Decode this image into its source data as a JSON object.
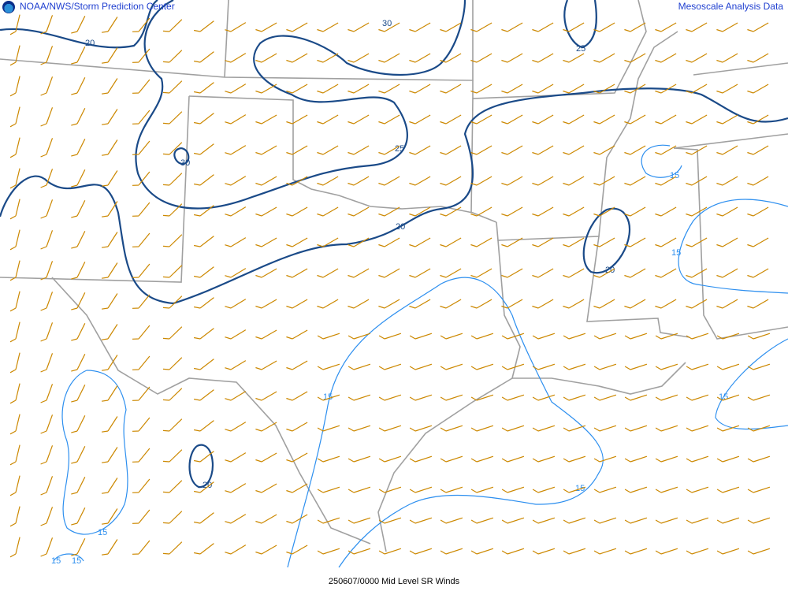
{
  "header": {
    "title": "NOAA/NWS/Storm Prediction Center",
    "right": "Mesoscale Analysis Data"
  },
  "footer": {
    "caption": "250607/0000 Mid Level SR Winds"
  },
  "colors": {
    "barbs": "#cc8800",
    "strong_contour": "#1a4a88",
    "weak_contour": "#2d8fef",
    "borders": "#a0a0a0"
  },
  "contour_labels": {
    "a": "20",
    "b": "30",
    "c": "25",
    "d": "30",
    "e": "25",
    "f": "20",
    "g": "15",
    "h": "15",
    "i": "20",
    "j": "15",
    "k": "15",
    "l": "20",
    "m": "15",
    "n": "15",
    "o": "15",
    "p": "15"
  }
}
